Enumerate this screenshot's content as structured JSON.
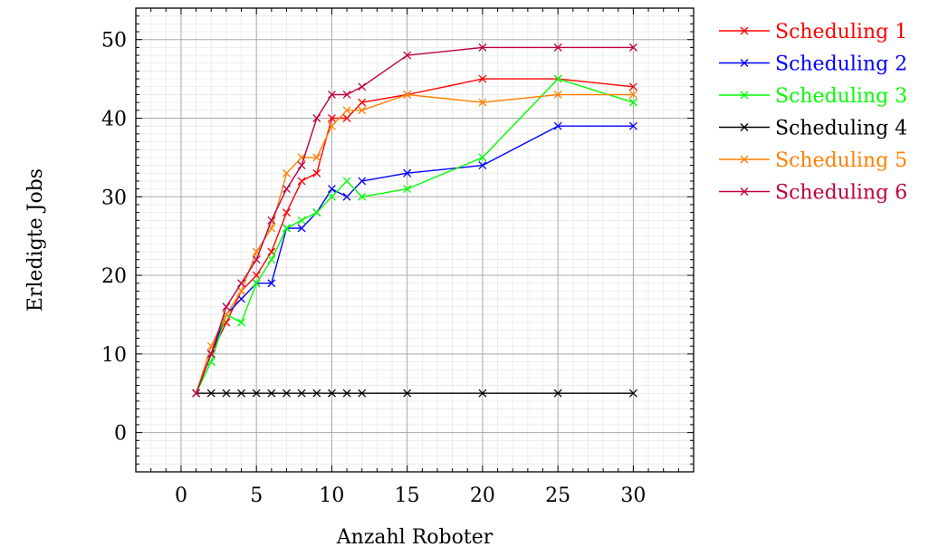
{
  "chart_data": {
    "type": "line",
    "xlabel": "Anzahl Roboter",
    "ylabel": "Erledigte Jobs",
    "xlim": [
      -3,
      34
    ],
    "ylim": [
      -5,
      54
    ],
    "xticks": [
      0,
      5,
      10,
      15,
      20,
      25,
      30
    ],
    "yticks": [
      0,
      10,
      20,
      30,
      40,
      50
    ],
    "grid": true,
    "legend_position": "right-top, outside",
    "x": [
      1,
      2,
      3,
      4,
      5,
      6,
      7,
      8,
      9,
      10,
      11,
      12,
      15,
      20,
      25,
      30
    ],
    "series": [
      {
        "name": "Scheduling 1",
        "color": "#ff0000",
        "values": [
          5,
          10,
          14,
          18,
          20,
          23,
          28,
          32,
          33,
          40,
          40,
          42,
          43,
          45,
          45,
          44
        ]
      },
      {
        "name": "Scheduling 2",
        "color": "#0000ff",
        "values": [
          5,
          10,
          15,
          17,
          19,
          19,
          26,
          26,
          28,
          31,
          30,
          32,
          33,
          34,
          39,
          39
        ]
      },
      {
        "name": "Scheduling 3",
        "color": "#00ff00",
        "values": [
          5,
          9,
          15,
          14,
          19,
          22,
          26,
          27,
          28,
          30,
          32,
          30,
          31,
          35,
          45,
          42
        ]
      },
      {
        "name": "Scheduling 4",
        "color": "#000000",
        "values": [
          5,
          5,
          5,
          5,
          5,
          5,
          5,
          5,
          5,
          5,
          5,
          5,
          5,
          5,
          5,
          5
        ]
      },
      {
        "name": "Scheduling 5",
        "color": "#ff8000",
        "values": [
          5,
          11,
          15,
          18,
          23,
          26,
          33,
          35,
          35,
          39,
          41,
          41,
          43,
          42,
          43,
          43
        ]
      },
      {
        "name": "Scheduling 6",
        "color": "#bf0040",
        "values": [
          5,
          10,
          16,
          19,
          22,
          27,
          31,
          34,
          40,
          43,
          43,
          44,
          48,
          49,
          49,
          49
        ]
      }
    ]
  }
}
